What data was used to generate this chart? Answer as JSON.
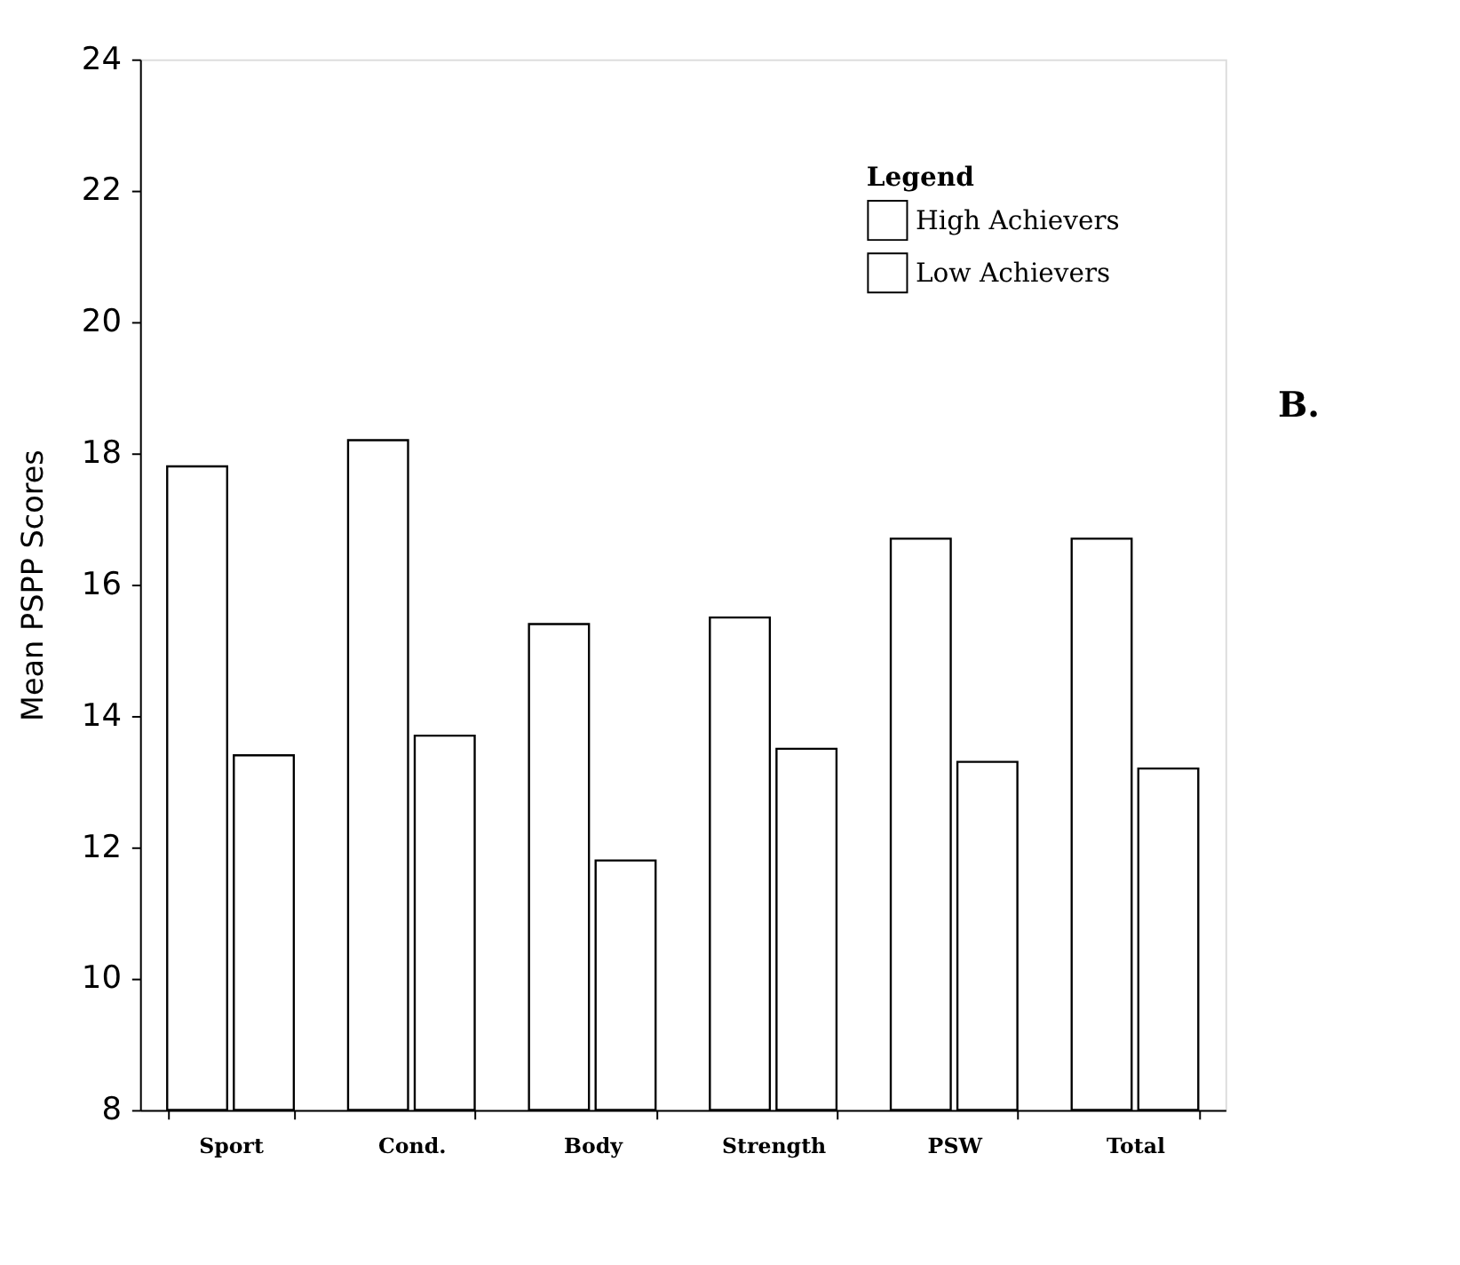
{
  "chart_data": {
    "type": "bar",
    "ylabel": "Mean PSPP Scores",
    "legend_title": "Legend",
    "categories": [
      "Sport",
      "Cond.",
      "Body",
      "Strength",
      "PSW",
      "Total"
    ],
    "series": [
      {
        "name": "High Achievers",
        "color": "#ffffff",
        "values": [
          17.8,
          18.2,
          15.4,
          15.5,
          16.7,
          16.7
        ]
      },
      {
        "name": "Low Achievers",
        "color": "#ffffff",
        "values": [
          13.4,
          13.7,
          11.8,
          13.5,
          13.3,
          13.2
        ]
      }
    ],
    "ylim": [
      8,
      24
    ],
    "yticks": [
      8,
      10,
      12,
      14,
      16,
      18,
      20,
      22,
      24
    ],
    "grid": false,
    "legend": "top right",
    "annotations": [
      "B."
    ]
  }
}
